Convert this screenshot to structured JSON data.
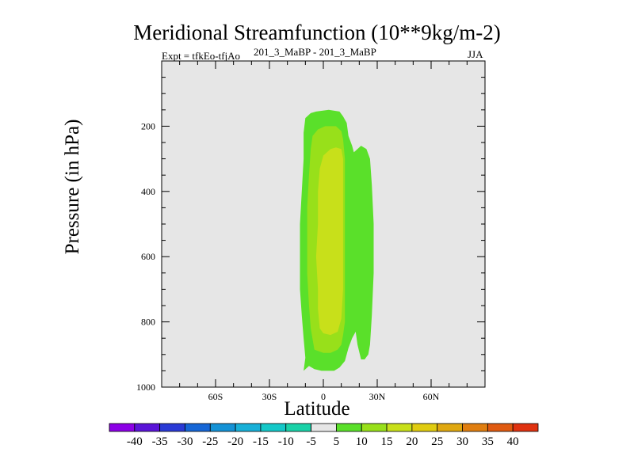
{
  "chart_data": {
    "type": "contour",
    "title": "Meridional Streamfunction (10**9kg/m-2)",
    "subtitle": "201_3_MaBP - 201_3_MaBP",
    "experiment": "Expt = tfkEo-tfjAo",
    "season": "JJA",
    "xlabel": "Latitude",
    "ylabel": "Pressure (in hPa)",
    "xlim": [
      -90,
      90
    ],
    "ylim": [
      1000,
      0
    ],
    "x_ticks": [
      {
        "value": -60,
        "label": "60S"
      },
      {
        "value": -30,
        "label": "30S"
      },
      {
        "value": 0,
        "label": "0"
      },
      {
        "value": 30,
        "label": "30N"
      },
      {
        "value": 60,
        "label": "60N"
      }
    ],
    "y_ticks": [
      {
        "value": 200,
        "label": "200"
      },
      {
        "value": 400,
        "label": "400"
      },
      {
        "value": 600,
        "label": "600"
      },
      {
        "value": 800,
        "label": "800"
      },
      {
        "value": 1000,
        "label": "1000"
      }
    ],
    "background_color": "#e6e6e6",
    "colorbar": {
      "levels": [
        "-40",
        "-35",
        "-30",
        "-25",
        "-20",
        "-15",
        "-10",
        "-5",
        "5",
        "10",
        "15",
        "20",
        "25",
        "30",
        "35",
        "40"
      ],
      "colors": [
        "#8c00e6",
        "#5a14d8",
        "#2a3ad6",
        "#1666d6",
        "#1492d6",
        "#18b0d8",
        "#14c8c8",
        "#1ad2a8",
        "#e6e6e6",
        "#5ae02a",
        "#98e01a",
        "#c8e01a",
        "#e0cc10",
        "#e0a810",
        "#e07e10",
        "#e05a10",
        "#e03210"
      ]
    },
    "contour_regions": [
      {
        "level_range": "5 to 10",
        "color": "#5ae02a",
        "points": [
          [
            -11,
            950
          ],
          [
            -10,
            910
          ],
          [
            -11,
            850
          ],
          [
            -12,
            780
          ],
          [
            -13,
            700
          ],
          [
            -13,
            600
          ],
          [
            -13,
            500
          ],
          [
            -12,
            400
          ],
          [
            -11,
            300
          ],
          [
            -11,
            220
          ],
          [
            -10,
            175
          ],
          [
            -7,
            160
          ],
          [
            -4,
            155
          ],
          [
            3,
            150
          ],
          [
            9,
            155
          ],
          [
            11,
            170
          ],
          [
            13,
            190
          ],
          [
            14,
            230
          ],
          [
            16,
            260
          ],
          [
            17,
            280
          ],
          [
            19,
            270
          ],
          [
            21,
            260
          ],
          [
            24,
            270
          ],
          [
            26,
            300
          ],
          [
            27,
            380
          ],
          [
            28,
            500
          ],
          [
            28,
            650
          ],
          [
            27,
            780
          ],
          [
            26,
            870
          ],
          [
            25,
            900
          ],
          [
            23,
            915
          ],
          [
            21,
            915
          ],
          [
            19,
            870
          ],
          [
            18,
            830
          ],
          [
            16,
            850
          ],
          [
            14,
            880
          ],
          [
            12,
            920
          ],
          [
            9,
            940
          ],
          [
            6,
            950
          ],
          [
            -1,
            950
          ],
          [
            -5,
            945
          ],
          [
            -8,
            935
          ]
        ]
      },
      {
        "level_range": "10 to 15",
        "color": "#98e01a",
        "points": [
          [
            -5,
            885
          ],
          [
            -7,
            820
          ],
          [
            -8,
            750
          ],
          [
            -9,
            650
          ],
          [
            -9,
            550
          ],
          [
            -9,
            450
          ],
          [
            -8,
            350
          ],
          [
            -7,
            270
          ],
          [
            -6,
            230
          ],
          [
            -3,
            210
          ],
          [
            1,
            200
          ],
          [
            7,
            200
          ],
          [
            10,
            215
          ],
          [
            11,
            240
          ],
          [
            12,
            300
          ],
          [
            12,
            500
          ],
          [
            12,
            700
          ],
          [
            12,
            800
          ],
          [
            11,
            840
          ],
          [
            10,
            870
          ],
          [
            8,
            885
          ],
          [
            4,
            895
          ],
          [
            0,
            895
          ]
        ]
      },
      {
        "level_range": "15 to 20",
        "color": "#c8e01a",
        "points": [
          [
            -2,
            820
          ],
          [
            -3,
            760
          ],
          [
            -3,
            700
          ],
          [
            -4,
            600
          ],
          [
            -3,
            500
          ],
          [
            -3,
            400
          ],
          [
            -2,
            330
          ],
          [
            0,
            290
          ],
          [
            4,
            270
          ],
          [
            7,
            265
          ],
          [
            10,
            270
          ],
          [
            11,
            300
          ],
          [
            11,
            500
          ],
          [
            11,
            700
          ],
          [
            10,
            790
          ],
          [
            8,
            830
          ],
          [
            4,
            840
          ],
          [
            0,
            835
          ]
        ]
      }
    ]
  }
}
